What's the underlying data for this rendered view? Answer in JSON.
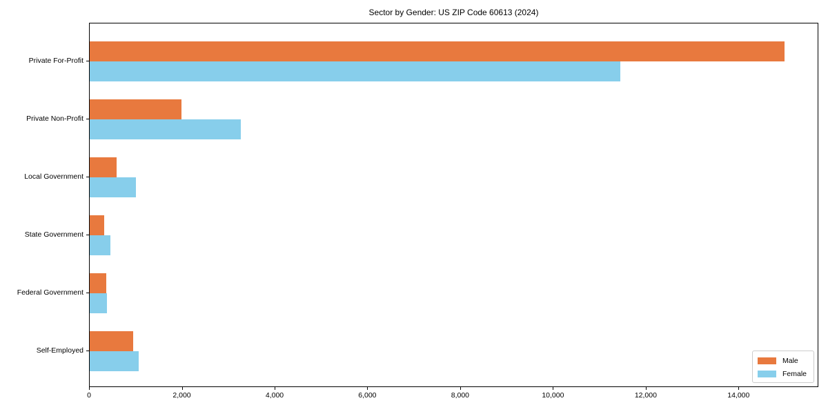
{
  "chart_data": {
    "type": "bar",
    "orientation": "horizontal",
    "title": "Sector by Gender: US ZIP Code 60613 (2024)",
    "categories": [
      "Private For-Profit",
      "Private Non-Profit",
      "Local Government",
      "State Government",
      "Federal Government",
      "Self-Employed"
    ],
    "series": [
      {
        "name": "Male",
        "color": "#e8793e",
        "values": [
          14970,
          1980,
          580,
          310,
          350,
          940
        ]
      },
      {
        "name": "Female",
        "color": "#87ceeb",
        "values": [
          11440,
          3250,
          990,
          450,
          370,
          1050
        ]
      }
    ],
    "xlabel": "",
    "ylabel": "",
    "xlim": [
      0,
      15720
    ],
    "x_ticks": [
      0,
      2000,
      4000,
      6000,
      8000,
      10000,
      12000,
      14000
    ],
    "x_tick_labels": [
      "0",
      "2,000",
      "4,000",
      "6,000",
      "8,000",
      "10,000",
      "12,000",
      "14,000"
    ],
    "grid": false,
    "legend": {
      "position": "lower right",
      "entries": [
        "Male",
        "Female"
      ]
    },
    "colors": {
      "male": "#e8793e",
      "female": "#87ceeb",
      "spine": "#000000",
      "legend_border": "#cccccc"
    }
  }
}
